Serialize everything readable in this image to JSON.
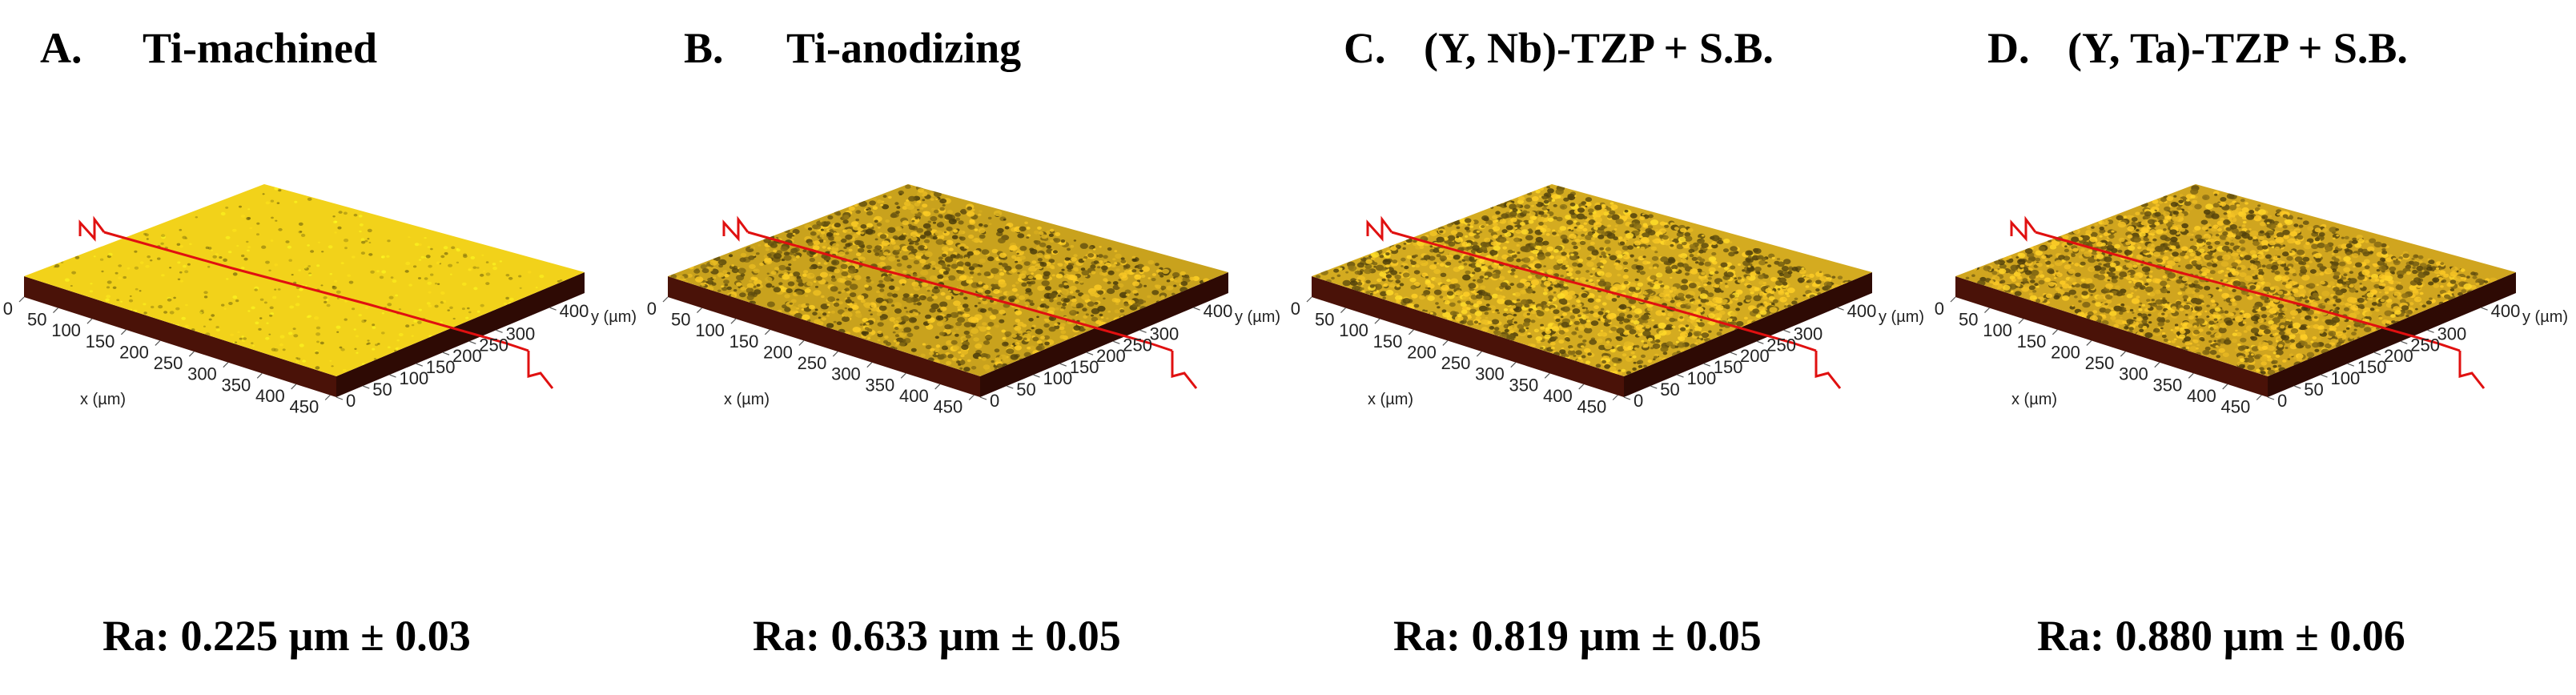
{
  "panels": [
    {
      "letter": "A.",
      "title": "Ti-machined",
      "ra": "Ra: 0.225 µm ± 0.03",
      "surface_color": "#f2d21a",
      "texture_density": 0.08
    },
    {
      "letter": "B.",
      "title": "Ti-anodizing",
      "ra": "Ra: 0.633 µm ± 0.05",
      "surface_color": "#c9a21d",
      "texture_density": 0.55
    },
    {
      "letter": "C.",
      "title": "(Y, Nb)-TZP + S.B.",
      "ra": "Ra: 0.819 µm ± 0.05",
      "surface_color": "#d4ab20",
      "texture_density": 0.7
    },
    {
      "letter": "D.",
      "title": "(Y, Ta)-TZP + S.B.",
      "ra": "Ra: 0.880 µm ± 0.06",
      "surface_color": "#d0a51f",
      "texture_density": 0.75
    }
  ],
  "axes": {
    "x_label": "x (µm)",
    "y_label": "y (µm)",
    "x_ticks": [
      "0",
      "50",
      "100",
      "150",
      "200",
      "250",
      "300",
      "350",
      "400",
      "450"
    ],
    "y_ticks": [
      "0",
      "50",
      "100",
      "150",
      "200",
      "250",
      "300",
      "400"
    ]
  },
  "colors": {
    "profile_line": "#e01010",
    "side_wall": "#4a1208",
    "side_wall_dark": "#2e0a04"
  }
}
